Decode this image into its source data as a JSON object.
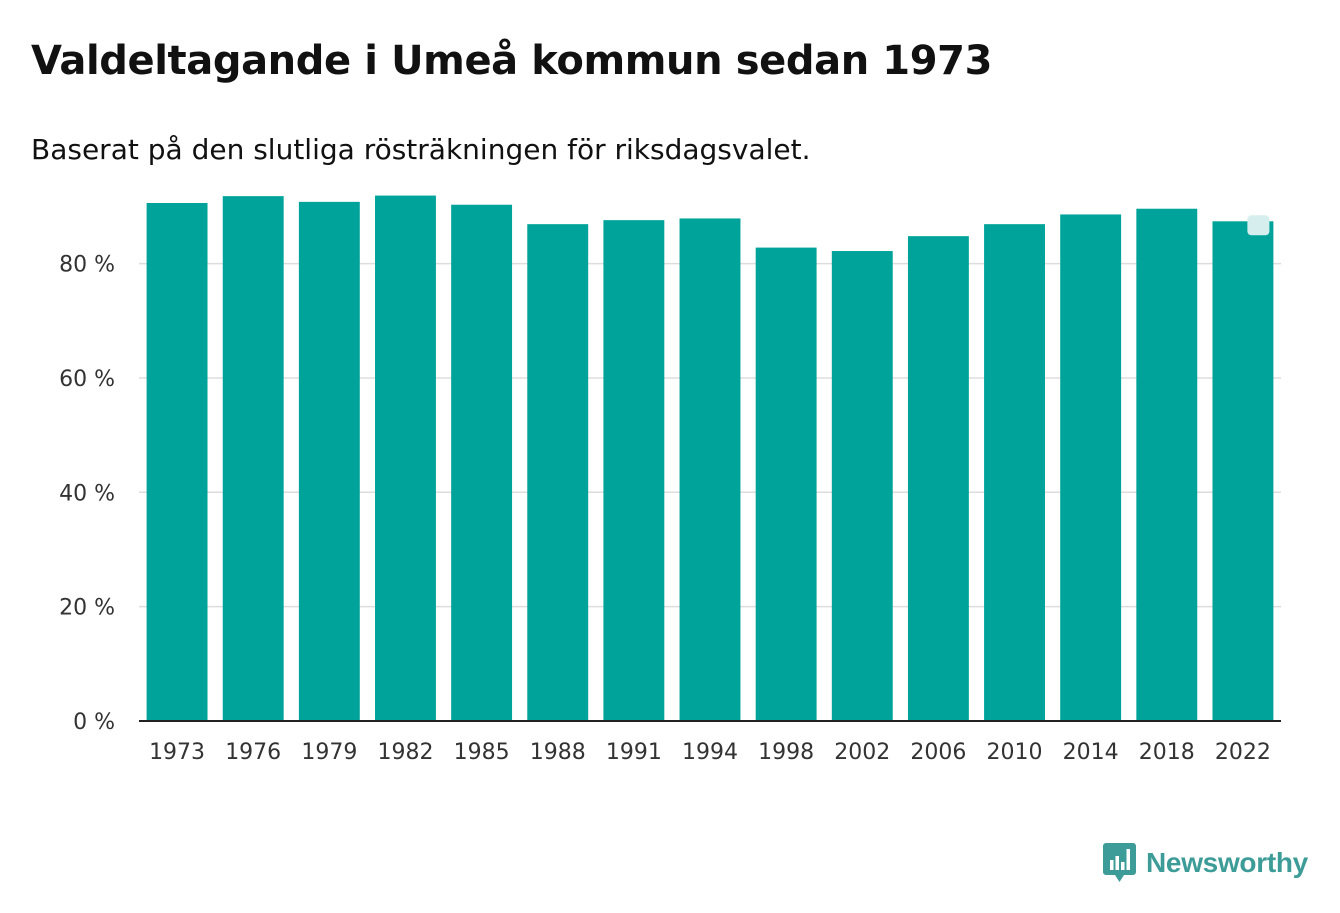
{
  "title": "Valdeltagande i Umeå kommun sedan 1973",
  "subtitle": "Baserat på den slutliga rösträkningen för riksdagsvalet.",
  "logo": {
    "text": "Newsworthy",
    "icon": "bar-chart-speech-bubble-icon",
    "color": "#3e9c98"
  },
  "colors": {
    "bar": "#00a39a",
    "highlight_marker": "#d6eeed",
    "grid": "#dddddd",
    "axis": "#222222"
  },
  "chart_data": {
    "type": "bar",
    "title": "Valdeltagande i Umeå kommun sedan 1973",
    "subtitle": "Baserat på den slutliga rösträkningen för riksdagsvalet.",
    "xlabel": "",
    "ylabel": "",
    "ylim": [
      0,
      92
    ],
    "yticks": [
      0,
      20,
      40,
      60,
      80
    ],
    "ytick_labels": [
      "0 %",
      "20 %",
      "40 %",
      "60 %",
      "80 %"
    ],
    "grid": true,
    "categories": [
      "1973",
      "1976",
      "1979",
      "1982",
      "1985",
      "1988",
      "1991",
      "1994",
      "1998",
      "2002",
      "2006",
      "2010",
      "2014",
      "2018",
      "2022"
    ],
    "values": [
      90.6,
      91.8,
      90.8,
      91.9,
      90.3,
      86.9,
      87.6,
      87.9,
      82.8,
      82.2,
      84.8,
      86.9,
      88.6,
      89.6,
      87.4
    ],
    "highlight_index": 14
  }
}
